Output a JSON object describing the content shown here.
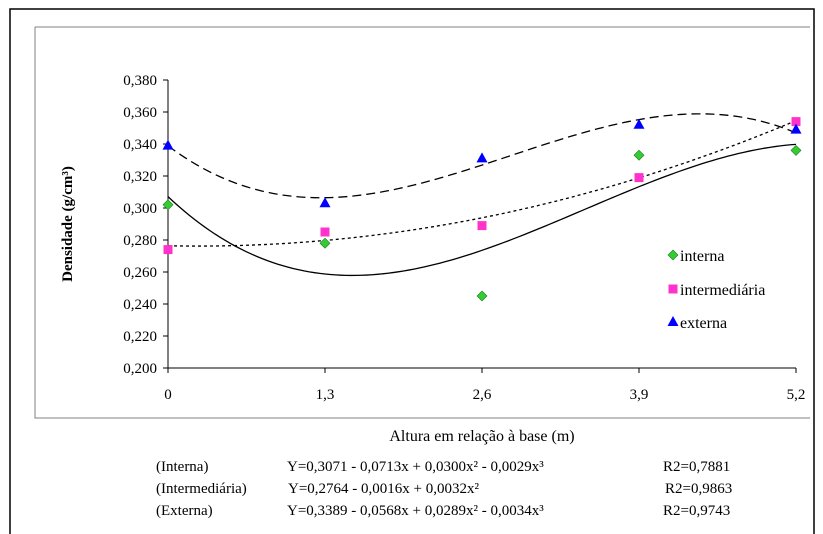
{
  "chart_data": {
    "type": "scatter",
    "xlabel": "Altura em relação à base (m)",
    "ylabel": "Densidade (g/cm³)",
    "x_ticks": [
      "0",
      "1,3",
      "2,6",
      "3,9",
      "5,2"
    ],
    "y_ticks": [
      "0,200",
      "0,220",
      "0,240",
      "0,260",
      "0,280",
      "0,300",
      "0,320",
      "0,340",
      "0,360",
      "0,380"
    ],
    "xlim": [
      0,
      5.2
    ],
    "ylim": [
      0.2,
      0.38
    ],
    "grid": false,
    "legend_position": "right",
    "series": [
      {
        "name": "interna",
        "marker": "diamond",
        "color": "#33cc33",
        "x": [
          0,
          1.3,
          2.6,
          3.9,
          5.2
        ],
        "y": [
          0.302,
          0.278,
          0.245,
          0.333,
          0.336
        ],
        "trend": {
          "coef": [
            0.3071,
            -0.0713,
            0.03,
            -0.0029
          ],
          "line_style": "solid"
        }
      },
      {
        "name": "intermediária",
        "marker": "square",
        "color": "#ff33cc",
        "x": [
          0,
          1.3,
          2.6,
          3.9,
          5.2
        ],
        "y": [
          0.274,
          0.285,
          0.289,
          0.319,
          0.354
        ],
        "trend": {
          "coef": [
            0.2764,
            -0.0016,
            0.0032,
            0
          ],
          "line_style": "dotted"
        }
      },
      {
        "name": "externa",
        "marker": "triangle",
        "color": "#0000ff",
        "x": [
          0,
          1.3,
          2.6,
          3.9,
          5.2
        ],
        "y": [
          0.339,
          0.303,
          0.331,
          0.352,
          0.349
        ],
        "trend": {
          "coef": [
            0.3389,
            -0.0568,
            0.0289,
            -0.0034
          ],
          "line_style": "dashed"
        }
      }
    ],
    "equations": [
      {
        "label": "(Interna)",
        "formula": "Y=0,3071 - 0,0713x + 0,0300x² - 0,0029x³",
        "r2": "R2=0,7881"
      },
      {
        "label": "(Intermediária)",
        "formula": "Y=0,2764 - 0,0016x + 0,0032x²",
        "r2": "R2=0,9863"
      },
      {
        "label": "(Externa)",
        "formula": "Y=0,3389 - 0,0568x + 0,0289x² - 0,0034x³",
        "r2": "R2=0,9743"
      }
    ]
  }
}
